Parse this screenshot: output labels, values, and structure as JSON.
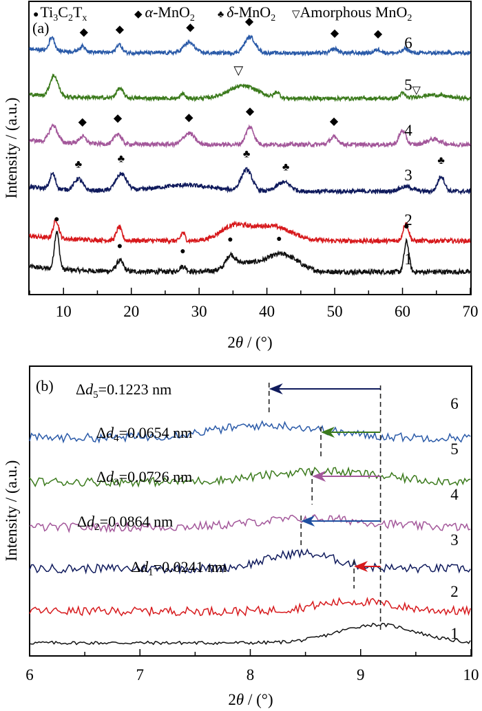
{
  "chart_data": [
    {
      "type": "line",
      "panel_label": "(a)",
      "title": "",
      "xlabel": "2θ / (°)",
      "ylabel": "Intensity / (a.u.)",
      "xlim": [
        5,
        70
      ],
      "xticks": [
        10,
        20,
        30,
        40,
        50,
        60,
        70
      ],
      "yticks": [],
      "grid": false,
      "legend": {
        "placement": "top",
        "entries": [
          {
            "marker": "●",
            "label": "Ti3C2Tx",
            "name": "Ti₃C₂Tₓ"
          },
          {
            "marker": "◆",
            "label": "α-MnO2",
            "name": "α-MnO₂"
          },
          {
            "marker": "♣",
            "label": "δ-MnO2",
            "name": "δ-MnO₂"
          },
          {
            "marker": "▽",
            "label": "Amorphous MnO2",
            "name": "Amorphous MnO₂"
          }
        ]
      },
      "series": [
        {
          "name": "1",
          "label": "1",
          "color": "#111111",
          "offset": 0,
          "baseline": 1.0,
          "peaks": [
            [
              9.0,
              4.2,
              0.35
            ],
            [
              18.3,
              1.2,
              0.5
            ],
            [
              27.6,
              0.6,
              0.5
            ],
            [
              34.6,
              1.2,
              0.6
            ],
            [
              36.0,
              0.9,
              2.0
            ],
            [
              41.5,
              1.4,
              2.5
            ],
            [
              43.0,
              0.7,
              2.0
            ],
            [
              60.6,
              3.4,
              0.35
            ]
          ],
          "markers": [
            {
              "x": 9.0,
              "symbol": "●"
            },
            {
              "x": 18.3,
              "symbol": "●"
            },
            {
              "x": 27.6,
              "symbol": "●"
            },
            {
              "x": 34.6,
              "symbol": "●"
            },
            {
              "x": 41.8,
              "symbol": "●"
            },
            {
              "x": 60.6,
              "symbol": "●"
            }
          ]
        },
        {
          "name": "2",
          "label": "2",
          "color": "#d7191c",
          "offset": 1,
          "baseline": 1.0,
          "peaks": [
            [
              8.9,
              2.2,
              0.4
            ],
            [
              18.2,
              1.6,
              0.4
            ],
            [
              27.6,
              1.0,
              0.3
            ],
            [
              35.0,
              1.6,
              2.0
            ],
            [
              40.5,
              1.8,
              3.0
            ],
            [
              60.5,
              2.2,
              0.4
            ]
          ],
          "markers": []
        },
        {
          "name": "3",
          "label": "3",
          "color": "#0f1a5c",
          "offset": 2,
          "baseline": 1.0,
          "peaks": [
            [
              8.4,
              2.0,
              0.4
            ],
            [
              12.2,
              1.5,
              0.6
            ],
            [
              18.5,
              2.2,
              0.8
            ],
            [
              28.0,
              0.8,
              4.0
            ],
            [
              37.0,
              2.8,
              0.8
            ],
            [
              42.5,
              1.2,
              1.0
            ],
            [
              60.5,
              0.6,
              1.0
            ],
            [
              65.7,
              2.0,
              0.5
            ]
          ],
          "markers": [
            {
              "x": 12.2,
              "symbol": "♣"
            },
            {
              "x": 18.5,
              "symbol": "♣"
            },
            {
              "x": 37.0,
              "symbol": "♣"
            },
            {
              "x": 42.8,
              "symbol": "♣"
            },
            {
              "x": 65.7,
              "symbol": "♣"
            }
          ]
        },
        {
          "name": "4",
          "label": "4",
          "color": "#a3579a",
          "offset": 3,
          "baseline": 1.0,
          "peaks": [
            [
              8.5,
              2.2,
              0.6
            ],
            [
              12.8,
              0.9,
              0.5
            ],
            [
              18.0,
              1.4,
              0.5
            ],
            [
              28.5,
              1.5,
              0.8
            ],
            [
              37.5,
              2.3,
              0.6
            ],
            [
              49.9,
              1.0,
              0.6
            ],
            [
              60.0,
              1.8,
              0.5
            ],
            [
              64.6,
              0.7,
              1.0
            ]
          ],
          "markers": [
            {
              "x": 12.8,
              "symbol": "◆"
            },
            {
              "x": 18.0,
              "symbol": "◆"
            },
            {
              "x": 28.5,
              "symbol": "◆"
            },
            {
              "x": 37.5,
              "symbol": "◆"
            },
            {
              "x": 49.9,
              "symbol": "◆"
            }
          ]
        },
        {
          "name": "5",
          "label": "5▽",
          "color": "#3b7a1c",
          "offset": 4,
          "baseline": 1.0,
          "peaks": [
            [
              8.6,
              3.0,
              0.6
            ],
            [
              18.3,
              1.4,
              0.5
            ],
            [
              27.6,
              0.7,
              0.3
            ],
            [
              36.5,
              1.8,
              2.2
            ],
            [
              41.5,
              0.8,
              0.4
            ],
            [
              60.0,
              0.7,
              0.4
            ],
            [
              64.5,
              0.5,
              2.0
            ]
          ],
          "markers": [
            {
              "x": 35.8,
              "symbol": "▽"
            }
          ]
        },
        {
          "name": "6",
          "label": "6",
          "color": "#2a5aa8",
          "offset": 5,
          "baseline": 1.0,
          "peaks": [
            [
              8.3,
              2.0,
              0.4
            ],
            [
              12.8,
              0.8,
              0.5
            ],
            [
              18.2,
              1.2,
              0.4
            ],
            [
              28.5,
              1.5,
              0.8
            ],
            [
              37.5,
              2.3,
              0.8
            ],
            [
              50.0,
              0.6,
              0.5
            ],
            [
              56.4,
              0.5,
              0.5
            ],
            [
              60.5,
              0.6,
              0.5
            ]
          ],
          "markers": [
            {
              "x": 13.0,
              "symbol": "◆"
            },
            {
              "x": 18.3,
              "symbol": "◆"
            },
            {
              "x": 28.7,
              "symbol": "◆"
            },
            {
              "x": 37.4,
              "symbol": "◆"
            },
            {
              "x": 50.0,
              "symbol": "◆"
            },
            {
              "x": 56.4,
              "symbol": "◆"
            }
          ]
        }
      ]
    },
    {
      "type": "line",
      "panel_label": "(b)",
      "title": "",
      "xlabel": "2θ / (°)",
      "ylabel": "Intensity / (a.u.)",
      "xlim": [
        6,
        10
      ],
      "xticks": [
        6,
        7,
        8,
        9,
        10
      ],
      "yticks": [],
      "grid": false,
      "reference_line_x": 9.18,
      "series": [
        {
          "name": "1",
          "label": "1",
          "color": "#111111",
          "peak_x": 9.15,
          "peak_height": 1.9,
          "peak_width": 0.35
        },
        {
          "name": "2",
          "label": "2",
          "color": "#d7191c",
          "peak_x": 8.94,
          "peak_height": 1.0,
          "peak_width": 0.35
        },
        {
          "name": "3",
          "label": "3",
          "color": "#0f1a5c",
          "peak_x": 8.46,
          "peak_height": 1.6,
          "peak_width": 0.3
        },
        {
          "name": "4",
          "label": "4",
          "color": "#a3579a",
          "peak_x": 8.56,
          "peak_height": 0.9,
          "peak_width": 0.5
        },
        {
          "name": "5",
          "label": "5",
          "color": "#3b7a1c",
          "peak_x": 8.64,
          "peak_height": 1.1,
          "peak_width": 0.5
        },
        {
          "name": "6",
          "label": "6",
          "color": "#2a5aa8",
          "peak_x": 8.17,
          "peak_height": 1.3,
          "peak_width": 0.5
        }
      ],
      "annotations": [
        {
          "series": "6",
          "delta_label": "Δd5=0.1223 nm",
          "sub": "5",
          "value": "=0.1223 nm",
          "arrow_from": 9.18,
          "arrow_to": 8.17,
          "arrow_color": "#0f1a5c"
        },
        {
          "series": "5",
          "delta_label": "Δd4=0.0654 nm",
          "sub": "4",
          "value": "=0.0654 nm",
          "arrow_from": 9.18,
          "arrow_to": 8.64,
          "arrow_color": "#3b7a1c"
        },
        {
          "series": "4",
          "delta_label": "Δd3=0.0726 nm",
          "sub": "3",
          "value": "=0.0726 nm",
          "arrow_from": 9.18,
          "arrow_to": 8.56,
          "arrow_color": "#a3579a"
        },
        {
          "series": "3",
          "delta_label": "Δd2=0.0864 nm",
          "sub": "2",
          "value": "=0.0864 nm",
          "arrow_from": 9.18,
          "arrow_to": 8.46,
          "arrow_color": "#1f4fa0"
        },
        {
          "series": "2",
          "delta_label": "Δd1=0.0241 nm",
          "sub": "1",
          "value": "=0.0241 nm",
          "arrow_from": 9.18,
          "arrow_to": 8.94,
          "arrow_color": "#d7191c"
        }
      ]
    }
  ]
}
